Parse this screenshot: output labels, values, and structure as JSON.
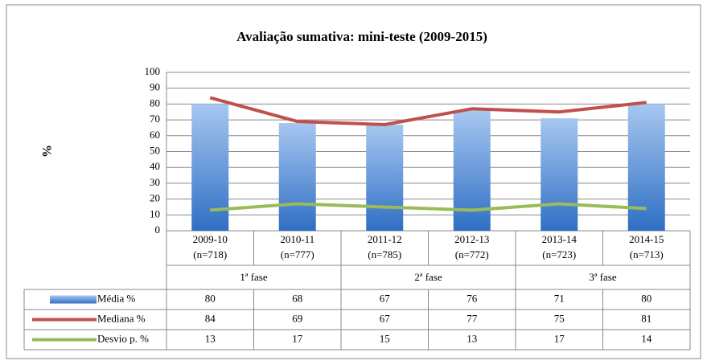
{
  "chart_data": {
    "type": "bar-line",
    "title": "Avaliação sumativa: mini-teste (2009-2015)",
    "y_label": "%",
    "categories": [
      "2009-10",
      "2010-11",
      "2011-12",
      "2012-13",
      "2013-14",
      "2014-15"
    ],
    "category_counts": [
      "(n=718)",
      "(n=777)",
      "(n=785)",
      "(n=772)",
      "(n=723)",
      "(n=713)"
    ],
    "groups": [
      "1ª fase",
      "2ª fase",
      "3ª fase"
    ],
    "series": [
      {
        "name": "Média %",
        "type": "bar",
        "color": "#4f81bd",
        "values": [
          80,
          68,
          67,
          76,
          71,
          80
        ]
      },
      {
        "name": "Mediana %",
        "type": "line",
        "color": "#c0504d",
        "values": [
          84,
          69,
          67,
          77,
          75,
          81
        ]
      },
      {
        "name": "Desvio p. %",
        "type": "line",
        "color": "#9bbb59",
        "values": [
          13,
          17,
          15,
          13,
          17,
          14
        ]
      }
    ],
    "ylim": [
      0,
      100
    ],
    "yticks": [
      0,
      10,
      20,
      30,
      40,
      50,
      60,
      70,
      80,
      90,
      100
    ],
    "grid": true
  }
}
